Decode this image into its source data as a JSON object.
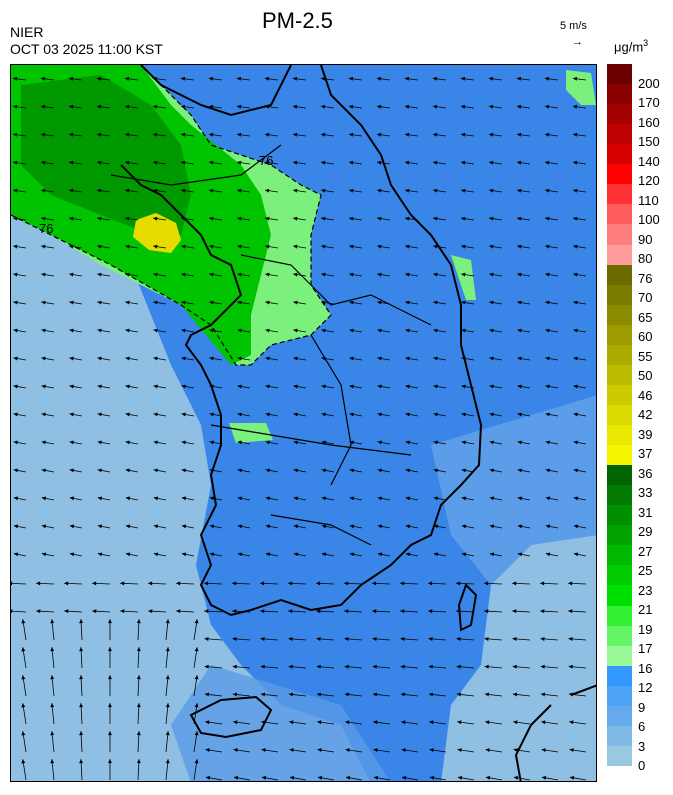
{
  "header": {
    "agency": "NIER",
    "datetime": "OCT 03 2025 11:00 KST",
    "title": "PM-2.5",
    "wind_scale_label": "5 m/s",
    "wind_scale_arrow": "→",
    "unit_base": "μg/m",
    "unit_exp": "3"
  },
  "map": {
    "contour_labels": [
      "76",
      "76"
    ]
  },
  "legend": {
    "labels": [
      "200",
      "170",
      "160",
      "150",
      "140",
      "120",
      "110",
      "100",
      "90",
      "80",
      "76",
      "70",
      "65",
      "60",
      "55",
      "50",
      "46",
      "42",
      "39",
      "37",
      "36",
      "33",
      "31",
      "29",
      "27",
      "25",
      "23",
      "21",
      "19",
      "17",
      "16",
      "12",
      "9",
      "6",
      "3",
      "0"
    ],
    "colors": [
      "#6b0000",
      "#8a0000",
      "#a30000",
      "#bd0000",
      "#d60000",
      "#ff0000",
      "#ff3333",
      "#ff5c5c",
      "#ff7f7f",
      "#ff9d9d",
      "#6b6b00",
      "#7b7b00",
      "#8b8b00",
      "#9c9c00",
      "#acac00",
      "#bcbc00",
      "#cbcb00",
      "#dada00",
      "#e8e800",
      "#f5f500",
      "#006400",
      "#007a00",
      "#008f00",
      "#00a300",
      "#00b800",
      "#00cc00",
      "#00e000",
      "#33f033",
      "#66f566",
      "#99f999",
      "#3399ff",
      "#4da3f5",
      "#66aaee",
      "#80b8e6",
      "#99c8e0"
    ],
    "base_colors": {
      "land_blue": "#3a86e8",
      "sea_blue": "#8fc0e4",
      "green_high": "#00b800",
      "green_low": "#7cf07c",
      "yellow": "#e6dc00"
    }
  }
}
